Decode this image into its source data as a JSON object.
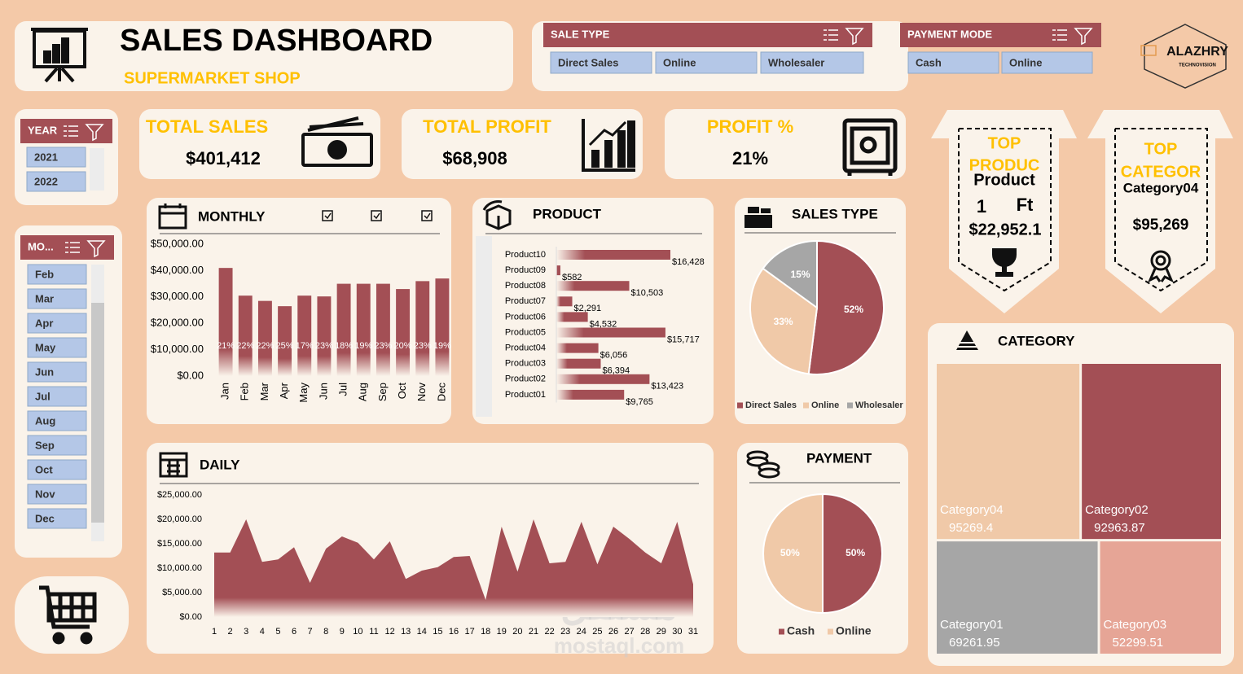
{
  "header": {
    "title": "SALES DASHBOARD",
    "subtitle": "SUPERMARKET SHOP"
  },
  "logo": {
    "name": "ALAZHRY",
    "tagline": "TECHNOVISION"
  },
  "slicers": {
    "sale_type": {
      "title": "SALE TYPE",
      "items": [
        "Direct Sales",
        "Online",
        "Wholesaler"
      ]
    },
    "payment_mode": {
      "title": "PAYMENT MODE",
      "items": [
        "Cash",
        "Online"
      ]
    },
    "year": {
      "title": "YEAR",
      "items": [
        "2021",
        "2022"
      ]
    },
    "month": {
      "title": "MO...",
      "items": [
        "Feb",
        "Mar",
        "Apr",
        "May",
        "Jun",
        "Jul",
        "Aug",
        "Sep",
        "Oct",
        "Nov",
        "Dec"
      ]
    }
  },
  "kpis": [
    {
      "title": "TOTAL SALES",
      "value": "$401,412"
    },
    {
      "title": "TOTAL PROFIT",
      "value": "$68,908"
    },
    {
      "title": "PROFIT %",
      "value": "21%"
    }
  ],
  "top_product": {
    "title_lines": [
      "TOP",
      "PRODUC"
    ],
    "name": "Product",
    "rank": "1",
    "suffix": "Ft",
    "value": "$22,952.1"
  },
  "top_category": {
    "title_lines": [
      "TOP",
      "CATEGOR"
    ],
    "name": "Category04",
    "value": "$95,269"
  },
  "chart_data": [
    {
      "type": "bar",
      "title": "MONTHLY",
      "categories": [
        "Jan",
        "Feb",
        "Mar",
        "Apr",
        "May",
        "Jun",
        "Jul",
        "Aug",
        "Sep",
        "Oct",
        "Nov",
        "Dec"
      ],
      "values": [
        41000,
        30500,
        28500,
        26500,
        30500,
        30200,
        35000,
        35000,
        35000,
        33000,
        36000,
        37000
      ],
      "profit_labels": [
        "21%",
        "22%",
        "22%",
        "25%",
        "17%",
        "23%",
        "18%",
        "19%",
        "23%",
        "20%",
        "23%",
        "19%"
      ],
      "color": "#a34f55",
      "ylim": [
        0,
        50000
      ],
      "yticks": [
        {
          "value": 0,
          "label": "$0.00"
        },
        {
          "value": 10000,
          "label": "$10,000.00"
        },
        {
          "value": 20000,
          "label": "$20,000.00"
        },
        {
          "value": 30000,
          "label": "$30,000.00"
        },
        {
          "value": 40000,
          "label": "$40,000.00"
        },
        {
          "value": 50000,
          "label": "$50,000.00"
        }
      ]
    },
    {
      "type": "hbar",
      "title": "PRODUCT",
      "categories": [
        "Product10",
        "Product09",
        "Product08",
        "Product07",
        "Product06",
        "Product05",
        "Product04",
        "Product03",
        "Product02",
        "Product01"
      ],
      "values": [
        16428,
        582,
        10503,
        2291,
        4532,
        15717,
        6056,
        6394,
        13423,
        9765
      ],
      "value_labels": [
        "$16,428",
        "$582",
        "$10,503",
        "$2,291",
        "$4,532",
        "$15,717",
        "$6,056",
        "$6,394",
        "$13,423",
        "$9,765"
      ],
      "color": "#a34f55"
    },
    {
      "type": "pie",
      "title": "SALES TYPE",
      "categories": [
        "Direct Sales",
        "Online",
        "Wholesaler"
      ],
      "values": [
        52,
        33,
        15
      ],
      "value_labels": [
        "52%",
        "33%",
        "15%"
      ],
      "colors": [
        "#a34f55",
        "#f0c9a8",
        "#a6a6a6"
      ],
      "legend": "bottom"
    },
    {
      "type": "area",
      "title": "DAILY",
      "x": [
        1,
        2,
        3,
        4,
        5,
        6,
        7,
        8,
        9,
        10,
        11,
        12,
        13,
        14,
        15,
        16,
        17,
        18,
        19,
        20,
        21,
        22,
        23,
        24,
        25,
        26,
        27,
        28,
        29,
        30,
        31
      ],
      "values": [
        13200,
        13200,
        20000,
        11300,
        11800,
        14300,
        7000,
        14000,
        16500,
        15200,
        11800,
        15500,
        7800,
        9500,
        10200,
        12300,
        12500,
        3500,
        18500,
        9300,
        20000,
        11000,
        11300,
        19500,
        10800,
        18500,
        16000,
        13200,
        11000,
        19500,
        6700
      ],
      "color": "#a34f55",
      "ylim": [
        0,
        25000
      ],
      "yticks": [
        {
          "value": 0,
          "label": "$0.00"
        },
        {
          "value": 5000,
          "label": "$5,000.00"
        },
        {
          "value": 10000,
          "label": "$10,000.00"
        },
        {
          "value": 15000,
          "label": "$15,000.00"
        },
        {
          "value": 20000,
          "label": "$20,000.00"
        },
        {
          "value": 25000,
          "label": "$25,000.00"
        }
      ]
    },
    {
      "type": "pie",
      "title": "PAYMENT",
      "categories": [
        "Cash",
        "Online"
      ],
      "values": [
        50,
        50
      ],
      "value_labels": [
        "50%",
        "50%"
      ],
      "colors": [
        "#a34f55",
        "#f0c9a8"
      ],
      "legend": "bottom"
    },
    {
      "type": "treemap",
      "title": "CATEGORY",
      "categories": [
        "Category04",
        "Category02",
        "Category01",
        "Category03"
      ],
      "values": [
        95269.4,
        92963.87,
        69261.95,
        52299.51
      ],
      "colors": [
        "#f0c9a8",
        "#a34f55",
        "#a6a6a6",
        "#e6a596"
      ]
    }
  ],
  "watermark": {
    "arabic": "مستقل",
    "latin": "mostaql.com"
  }
}
